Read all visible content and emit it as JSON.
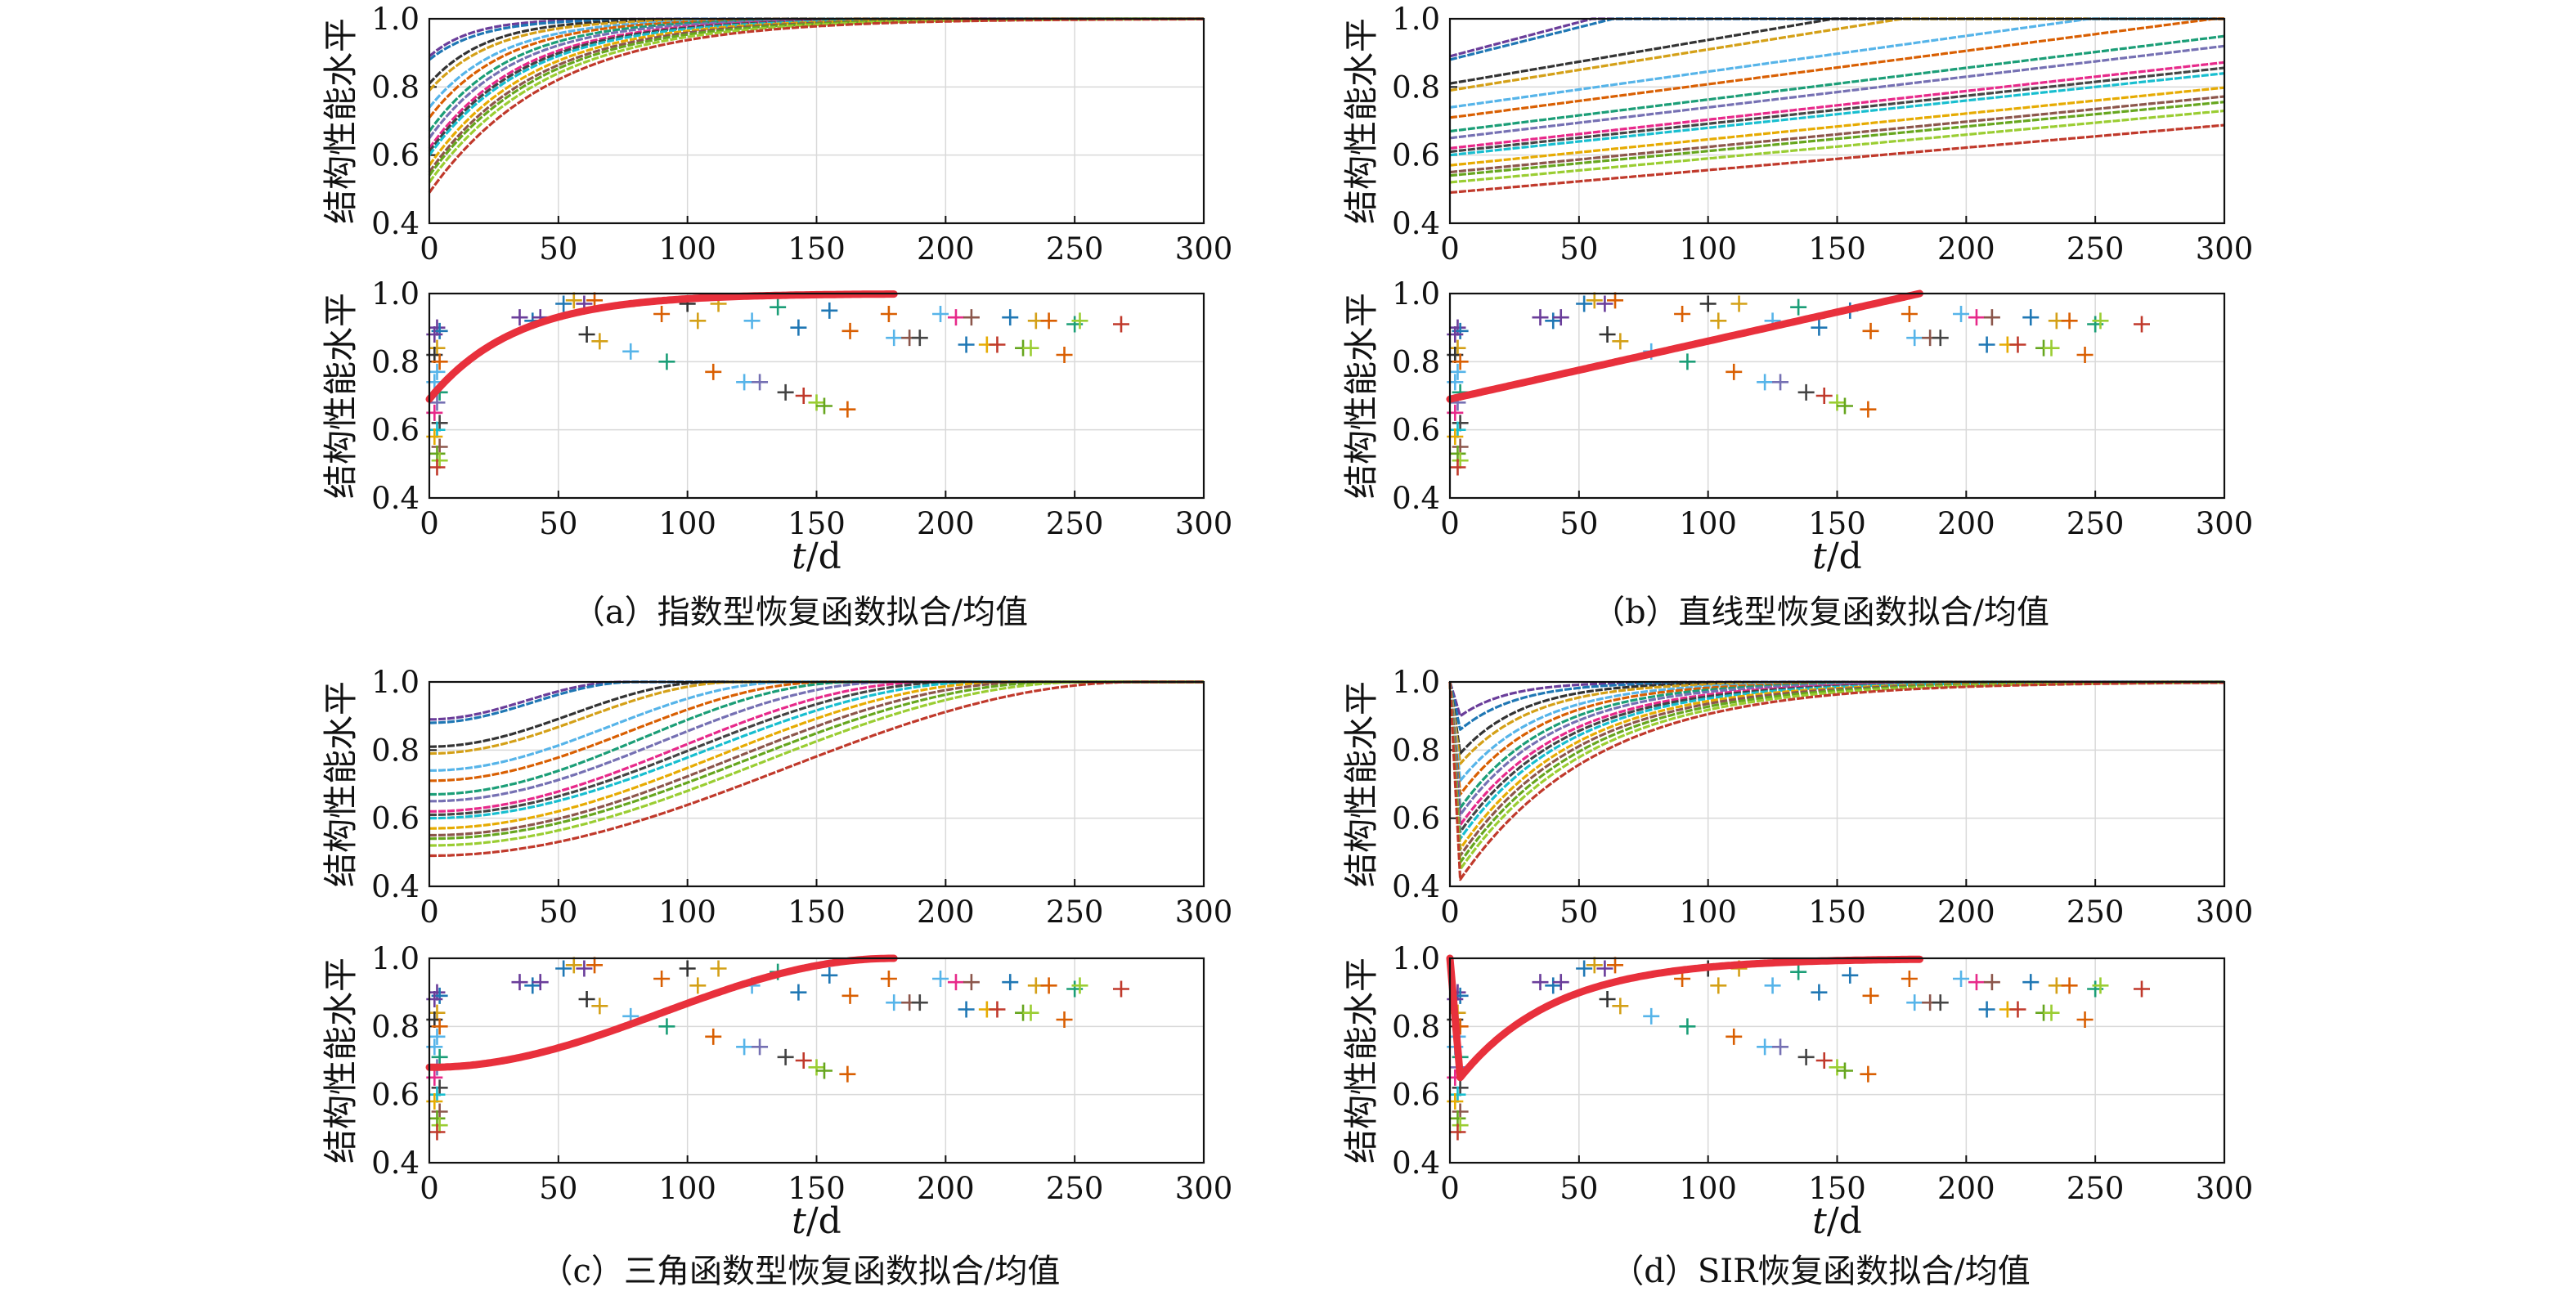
{
  "chart_data": [
    {
      "panel": "a",
      "type": "line",
      "caption": "（a）指数型恢复函数拟合/均值",
      "recovery_model": "exponential",
      "top": {
        "ylabel": "结构性能水平",
        "xlabel": "",
        "xlim": [
          0,
          300
        ],
        "ylim": [
          0.4,
          1.0
        ],
        "xticks": [
          0,
          50,
          100,
          150,
          200,
          250,
          300
        ],
        "yticks": [
          0.4,
          0.6,
          0.8,
          1.0
        ],
        "grid": true
      },
      "bottom": {
        "ylabel": "结构性能水平",
        "xlabel": "t/d",
        "xlim": [
          0,
          300
        ],
        "ylim": [
          0.4,
          1.0
        ],
        "xticks": [
          0,
          50,
          100,
          150,
          200,
          250,
          300
        ],
        "yticks": [
          0.4,
          0.6,
          0.8,
          1.0
        ],
        "grid": true,
        "mean_curve": {
          "x_start": 0,
          "x_end": 180,
          "y_start": 0.69,
          "y_end": 1.0
        }
      }
    },
    {
      "panel": "b",
      "type": "line",
      "caption": "（b）直线型恢复函数拟合/均值",
      "recovery_model": "linear",
      "top": {
        "ylabel": "结构性能水平",
        "xlabel": "",
        "xlim": [
          0,
          300
        ],
        "ylim": [
          0.4,
          1.0
        ],
        "xticks": [
          0,
          50,
          100,
          150,
          200,
          250,
          300
        ],
        "yticks": [
          0.4,
          0.6,
          0.8,
          1.0
        ],
        "grid": true
      },
      "bottom": {
        "ylabel": "结构性能水平",
        "xlabel": "t/d",
        "xlim": [
          0,
          300
        ],
        "ylim": [
          0.4,
          1.0
        ],
        "xticks": [
          0,
          50,
          100,
          150,
          200,
          250,
          300
        ],
        "yticks": [
          0.4,
          0.6,
          0.8,
          1.0
        ],
        "grid": true,
        "mean_curve": {
          "x_start": 0,
          "x_end": 182,
          "y_start": 0.69,
          "y_end": 1.0
        }
      }
    },
    {
      "panel": "c",
      "type": "line",
      "caption": "（c）三角函数型恢复函数拟合/均值",
      "recovery_model": "trigonometric",
      "top": {
        "ylabel": "结构性能水平",
        "xlabel": "",
        "xlim": [
          0,
          300
        ],
        "ylim": [
          0.4,
          1.0
        ],
        "xticks": [
          0,
          50,
          100,
          150,
          200,
          250,
          300
        ],
        "yticks": [
          0.4,
          0.6,
          0.8,
          1.0
        ],
        "grid": true
      },
      "bottom": {
        "ylabel": "结构性能水平",
        "xlabel": "t/d",
        "xlim": [
          0,
          300
        ],
        "ylim": [
          0.4,
          1.0
        ],
        "xticks": [
          0,
          50,
          100,
          150,
          200,
          250,
          300
        ],
        "yticks": [
          0.4,
          0.6,
          0.8,
          1.0
        ],
        "grid": true,
        "mean_curve": {
          "x_start": 0,
          "x_end": 180,
          "y_start": 0.68,
          "y_end": 1.0
        }
      }
    },
    {
      "panel": "d",
      "type": "line",
      "caption": "（d）SIR恢复函数拟合/均值",
      "recovery_model": "sir",
      "top": {
        "ylabel": "结构性能水平",
        "xlabel": "",
        "xlim": [
          0,
          300
        ],
        "ylim": [
          0.4,
          1.0
        ],
        "xticks": [
          0,
          50,
          100,
          150,
          200,
          250,
          300
        ],
        "yticks": [
          0.4,
          0.6,
          0.8,
          1.0
        ],
        "grid": true
      },
      "bottom": {
        "ylabel": "结构性能水平",
        "xlabel": "t/d",
        "xlim": [
          0,
          300
        ],
        "ylim": [
          0.4,
          1.0
        ],
        "xticks": [
          0,
          50,
          100,
          150,
          200,
          250,
          300
        ],
        "yticks": [
          0.4,
          0.6,
          0.8,
          1.0
        ],
        "grid": true,
        "mean_curve": {
          "x_start": 0,
          "x_end": 182,
          "y_start": 1.0,
          "y_min": 0.65,
          "y_end": 1.0
        }
      }
    }
  ],
  "fitted_curves": [
    {
      "y0": 0.89,
      "color": "#6a3d9a",
      "exp_rate": 0.06,
      "linear_slope": 0.002,
      "sin_end": 75,
      "sir_end": 0.9
    },
    {
      "y0": 0.88,
      "color": "#1f77b4",
      "exp_rate": 0.05,
      "linear_slope": 0.0019,
      "sin_end": 80,
      "sir_end": 0.86
    },
    {
      "y0": 0.81,
      "color": "#333333",
      "exp_rate": 0.045,
      "linear_slope": 0.00128,
      "sin_end": 110,
      "sir_end": 0.79
    },
    {
      "y0": 0.79,
      "color": "#d4a017",
      "exp_rate": 0.04,
      "linear_slope": 0.0012,
      "sin_end": 120,
      "sir_end": 0.76
    },
    {
      "y0": 0.74,
      "color": "#56b4e9",
      "exp_rate": 0.036,
      "linear_slope": 0.00105,
      "sin_end": 140,
      "sir_end": 0.71
    },
    {
      "y0": 0.71,
      "color": "#d95f02",
      "exp_rate": 0.034,
      "linear_slope": 0.00098,
      "sin_end": 155,
      "sir_end": 0.67
    },
    {
      "y0": 0.67,
      "color": "#1b9e77",
      "exp_rate": 0.032,
      "linear_slope": 0.00093,
      "sin_end": 165,
      "sir_end": 0.63
    },
    {
      "y0": 0.65,
      "color": "#7570b3",
      "exp_rate": 0.03,
      "linear_slope": 0.0009,
      "sin_end": 180,
      "sir_end": 0.61
    },
    {
      "y0": 0.62,
      "color": "#e7298a",
      "exp_rate": 0.028,
      "linear_slope": 0.00084,
      "sin_end": 195,
      "sir_end": 0.58
    },
    {
      "y0": 0.61,
      "color": "#444444",
      "exp_rate": 0.027,
      "linear_slope": 0.00082,
      "sin_end": 205,
      "sir_end": 0.56
    },
    {
      "y0": 0.6,
      "color": "#17becf",
      "exp_rate": 0.026,
      "linear_slope": 0.0008,
      "sin_end": 215,
      "sir_end": 0.54
    },
    {
      "y0": 0.57,
      "color": "#e6ab02",
      "exp_rate": 0.025,
      "linear_slope": 0.00076,
      "sin_end": 225,
      "sir_end": 0.51
    },
    {
      "y0": 0.55,
      "color": "#8c564b",
      "exp_rate": 0.024,
      "linear_slope": 0.00074,
      "sin_end": 235,
      "sir_end": 0.49
    },
    {
      "y0": 0.54,
      "color": "#66a61e",
      "exp_rate": 0.023,
      "linear_slope": 0.00072,
      "sin_end": 245,
      "sir_end": 0.47
    },
    {
      "y0": 0.52,
      "color": "#9acd32",
      "exp_rate": 0.022,
      "linear_slope": 0.0007,
      "sin_end": 255,
      "sir_end": 0.45
    },
    {
      "y0": 0.49,
      "color": "#c0392b",
      "exp_rate": 0.021,
      "linear_slope": 0.00066,
      "sin_end": 275,
      "sir_end": 0.42
    }
  ],
  "mean_curve_color": "#e8303c",
  "observations": [
    {
      "x": 3,
      "y": 0.9,
      "color": "#6a3d9a"
    },
    {
      "x": 4,
      "y": 0.89,
      "color": "#1f77b4"
    },
    {
      "x": 2,
      "y": 0.88,
      "color": "#6a3d9a"
    },
    {
      "x": 3,
      "y": 0.84,
      "color": "#d4a017"
    },
    {
      "x": 2,
      "y": 0.82,
      "color": "#333333"
    },
    {
      "x": 4,
      "y": 0.8,
      "color": "#d95f02"
    },
    {
      "x": 3,
      "y": 0.77,
      "color": "#56b4e9"
    },
    {
      "x": 2,
      "y": 0.74,
      "color": "#56b4e9"
    },
    {
      "x": 4,
      "y": 0.71,
      "color": "#1b9e77"
    },
    {
      "x": 3,
      "y": 0.68,
      "color": "#7570b3"
    },
    {
      "x": 2,
      "y": 0.65,
      "color": "#e7298a"
    },
    {
      "x": 4,
      "y": 0.62,
      "color": "#444444"
    },
    {
      "x": 3,
      "y": 0.6,
      "color": "#17becf"
    },
    {
      "x": 2,
      "y": 0.58,
      "color": "#e6ab02"
    },
    {
      "x": 4,
      "y": 0.55,
      "color": "#8c564b"
    },
    {
      "x": 3,
      "y": 0.53,
      "color": "#66a61e"
    },
    {
      "x": 4,
      "y": 0.51,
      "color": "#9acd32"
    },
    {
      "x": 3,
      "y": 0.49,
      "color": "#c0392b"
    },
    {
      "x": 35,
      "y": 0.93,
      "color": "#6a3d9a"
    },
    {
      "x": 40,
      "y": 0.92,
      "color": "#1f77b4"
    },
    {
      "x": 43,
      "y": 0.93,
      "color": "#6a3d9a"
    },
    {
      "x": 52,
      "y": 0.97,
      "color": "#1f77b4"
    },
    {
      "x": 56,
      "y": 0.98,
      "color": "#d4a017"
    },
    {
      "x": 60,
      "y": 0.97,
      "color": "#6a3d9a"
    },
    {
      "x": 64,
      "y": 0.98,
      "color": "#d95f02"
    },
    {
      "x": 61,
      "y": 0.88,
      "color": "#333333"
    },
    {
      "x": 66,
      "y": 0.86,
      "color": "#d4a017"
    },
    {
      "x": 78,
      "y": 0.83,
      "color": "#56b4e9"
    },
    {
      "x": 92,
      "y": 0.8,
      "color": "#1b9e77"
    },
    {
      "x": 90,
      "y": 0.94,
      "color": "#d95f02"
    },
    {
      "x": 100,
      "y": 0.97,
      "color": "#333333"
    },
    {
      "x": 104,
      "y": 0.92,
      "color": "#d4a017"
    },
    {
      "x": 110,
      "y": 0.77,
      "color": "#d95f02"
    },
    {
      "x": 112,
      "y": 0.97,
      "color": "#d4a017"
    },
    {
      "x": 122,
      "y": 0.74,
      "color": "#56b4e9"
    },
    {
      "x": 125,
      "y": 0.92,
      "color": "#56b4e9"
    },
    {
      "x": 128,
      "y": 0.74,
      "color": "#7570b3"
    },
    {
      "x": 135,
      "y": 0.96,
      "color": "#1b9e77"
    },
    {
      "x": 138,
      "y": 0.71,
      "color": "#444444"
    },
    {
      "x": 145,
      "y": 0.7,
      "color": "#c0392b"
    },
    {
      "x": 143,
      "y": 0.9,
      "color": "#1f77b4"
    },
    {
      "x": 150,
      "y": 0.68,
      "color": "#9acd32"
    },
    {
      "x": 153,
      "y": 0.67,
      "color": "#66a61e"
    },
    {
      "x": 155,
      "y": 0.95,
      "color": "#1f77b4"
    },
    {
      "x": 162,
      "y": 0.66,
      "color": "#d95f02"
    },
    {
      "x": 163,
      "y": 0.89,
      "color": "#d95f02"
    },
    {
      "x": 178,
      "y": 0.94,
      "color": "#d95f02"
    },
    {
      "x": 180,
      "y": 0.87,
      "color": "#56b4e9"
    },
    {
      "x": 186,
      "y": 0.87,
      "color": "#8c564b"
    },
    {
      "x": 190,
      "y": 0.87,
      "color": "#444444"
    },
    {
      "x": 198,
      "y": 0.94,
      "color": "#56b4e9"
    },
    {
      "x": 204,
      "y": 0.93,
      "color": "#e7298a"
    },
    {
      "x": 208,
      "y": 0.85,
      "color": "#1f77b4"
    },
    {
      "x": 210,
      "y": 0.93,
      "color": "#8c564b"
    },
    {
      "x": 216,
      "y": 0.85,
      "color": "#e6ab02"
    },
    {
      "x": 220,
      "y": 0.85,
      "color": "#c0392b"
    },
    {
      "x": 225,
      "y": 0.93,
      "color": "#1f77b4"
    },
    {
      "x": 230,
      "y": 0.84,
      "color": "#66a61e"
    },
    {
      "x": 233,
      "y": 0.84,
      "color": "#9acd32"
    },
    {
      "x": 235,
      "y": 0.92,
      "color": "#d4a017"
    },
    {
      "x": 240,
      "y": 0.92,
      "color": "#d95f02"
    },
    {
      "x": 246,
      "y": 0.82,
      "color": "#d95f02"
    },
    {
      "x": 250,
      "y": 0.91,
      "color": "#1b9e77"
    },
    {
      "x": 252,
      "y": 0.92,
      "color": "#9acd32"
    },
    {
      "x": 268,
      "y": 0.91,
      "color": "#c0392b"
    }
  ]
}
